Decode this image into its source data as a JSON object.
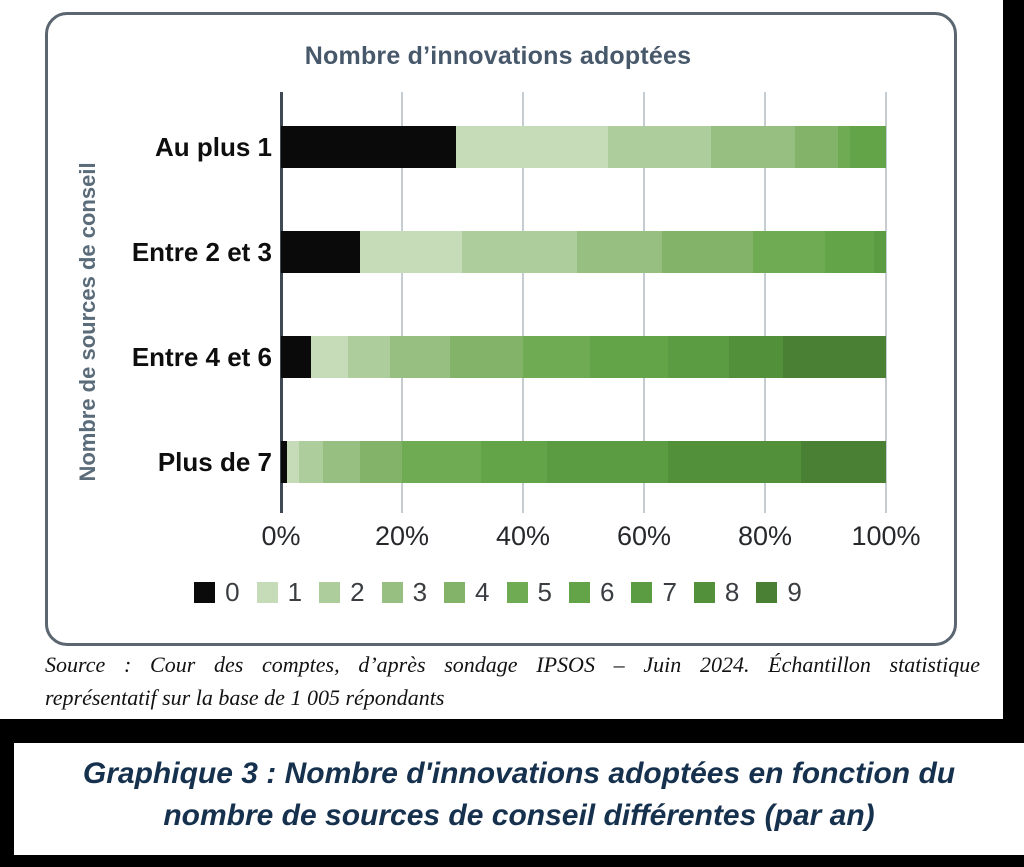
{
  "chart_data": {
    "type": "bar",
    "orientation": "horizontal",
    "stacked": true,
    "unit": "percent",
    "title": "Nombre d’innovations adoptées",
    "ylabel": "Nombre de sources de conseil",
    "xlabel": "",
    "xlim": [
      0,
      100
    ],
    "x_tick_labels": [
      "0%",
      "20%",
      "40%",
      "60%",
      "80%",
      "100%"
    ],
    "grid": "vertical",
    "legend_position": "bottom",
    "categories": [
      "Au plus 1",
      "Entre 2 et 3",
      "Entre 4 et 6",
      "Plus de 7"
    ],
    "series": [
      {
        "name": "0",
        "color": "#0a0a0a",
        "values": [
          29,
          13,
          5,
          1
        ]
      },
      {
        "name": "1",
        "color": "#c6dbb7",
        "values": [
          25,
          17,
          6,
          2
        ]
      },
      {
        "name": "2",
        "color": "#aecd9c",
        "values": [
          17,
          19,
          7,
          4
        ]
      },
      {
        "name": "3",
        "color": "#97bf81",
        "values": [
          14,
          14,
          10,
          6
        ]
      },
      {
        "name": "4",
        "color": "#83b368",
        "values": [
          7,
          15,
          12,
          7
        ]
      },
      {
        "name": "5",
        "color": "#6fab52",
        "values": [
          2,
          12,
          11,
          13
        ]
      },
      {
        "name": "6",
        "color": "#63a449",
        "values": [
          6,
          8,
          13,
          11
        ]
      },
      {
        "name": "7",
        "color": "#5b9b42",
        "values": [
          0,
          2,
          10,
          20
        ]
      },
      {
        "name": "8",
        "color": "#52903a",
        "values": [
          0,
          0,
          9,
          22
        ]
      },
      {
        "name": "9",
        "color": "#4a8034",
        "values": [
          0,
          0,
          17,
          14
        ]
      }
    ]
  },
  "source": {
    "line1": "Source : Cour des comptes, d’après sondage IPSOS – Juin 2024. Échantillon statistique",
    "line2": "représentatif sur la base de 1 005 répondants"
  },
  "caption": {
    "line1": "Graphique 3 : Nombre d'innovations adoptées en fonction du",
    "line2": "nombre de sources de conseil différentes (par an)"
  }
}
